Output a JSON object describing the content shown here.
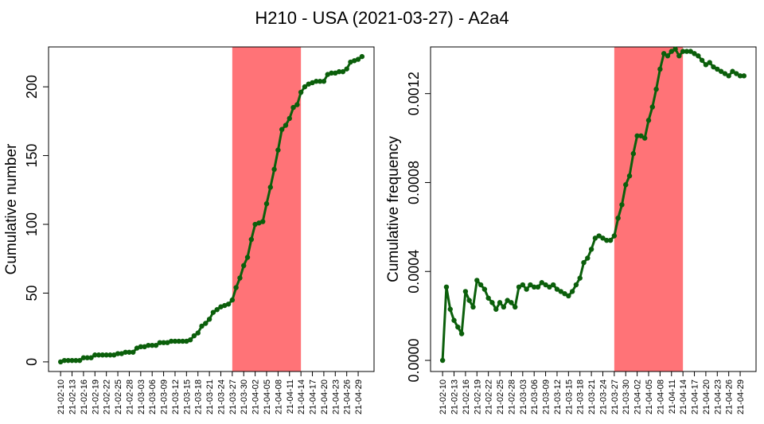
{
  "title": "H210 - USA (2021-03-27) - A2a4",
  "colors": {
    "line": "#0b5f0b",
    "highlight": "#ff7377",
    "frame": "#000000"
  },
  "chart_data": [
    {
      "type": "line",
      "ylabel": "Cumulative number",
      "xlabel": "",
      "ylim": [
        -7,
        229
      ],
      "yticks": [
        0,
        50,
        100,
        150,
        200
      ],
      "ytick_labels": [
        "0",
        "50",
        "100",
        "150",
        "200"
      ],
      "highlight_dates": [
        "21-03-27",
        "21-04-14"
      ],
      "xtick_labels": [
        "21-02-10",
        "21-02-13",
        "21-02-16",
        "21-02-19",
        "21-02-22",
        "21-02-25",
        "21-02-28",
        "21-03-03",
        "21-03-06",
        "21-03-09",
        "21-03-12",
        "21-03-15",
        "21-03-18",
        "21-03-21",
        "21-03-24",
        "21-03-27",
        "21-03-30",
        "21-04-02",
        "21-04-05",
        "21-04-08",
        "21-04-11",
        "21-04-14",
        "21-04-17",
        "21-04-20",
        "21-04-23",
        "21-04-26",
        "21-04-29"
      ],
      "series": [
        {
          "x": [
            "21-02-10",
            "21-02-11",
            "21-02-12",
            "21-02-13",
            "21-02-14",
            "21-02-15",
            "21-02-16",
            "21-02-17",
            "21-02-18",
            "21-02-19",
            "21-02-20",
            "21-02-21",
            "21-02-22",
            "21-02-23",
            "21-02-24",
            "21-02-25",
            "21-02-26",
            "21-02-27",
            "21-02-28",
            "21-03-01",
            "21-03-02",
            "21-03-03",
            "21-03-04",
            "21-03-05",
            "21-03-06",
            "21-03-07",
            "21-03-08",
            "21-03-09",
            "21-03-10",
            "21-03-11",
            "21-03-12",
            "21-03-13",
            "21-03-14",
            "21-03-15",
            "21-03-16",
            "21-03-17",
            "21-03-18",
            "21-03-19",
            "21-03-20",
            "21-03-21",
            "21-03-22",
            "21-03-23",
            "21-03-24",
            "21-03-25",
            "21-03-26",
            "21-03-27",
            "21-03-28",
            "21-03-29",
            "21-03-30",
            "21-03-31",
            "21-04-01",
            "21-04-02",
            "21-04-03",
            "21-04-04",
            "21-04-05",
            "21-04-06",
            "21-04-07",
            "21-04-08",
            "21-04-09",
            "21-04-10",
            "21-04-11",
            "21-04-12",
            "21-04-13",
            "21-04-14",
            "21-04-15",
            "21-04-16",
            "21-04-17",
            "21-04-18",
            "21-04-19",
            "21-04-20",
            "21-04-21",
            "21-04-22",
            "21-04-23",
            "21-04-24",
            "21-04-25",
            "21-04-26",
            "21-04-27",
            "21-04-28",
            "21-04-29",
            "21-04-30"
          ],
          "y": [
            0,
            1,
            1,
            1,
            1,
            1,
            3,
            3,
            3,
            5,
            5,
            5,
            5,
            5,
            5,
            6,
            6,
            7,
            7,
            7,
            10,
            11,
            11,
            12,
            12,
            12,
            14,
            14,
            14,
            15,
            15,
            15,
            15,
            15,
            16,
            19,
            21,
            26,
            28,
            31,
            36,
            38,
            40,
            41,
            42,
            45,
            54,
            61,
            70,
            76,
            89,
            100,
            101,
            102,
            115,
            127,
            140,
            154,
            169,
            172,
            177,
            185,
            187,
            196,
            200,
            202,
            203,
            204,
            204,
            204,
            209,
            210,
            210,
            211,
            211,
            213,
            218,
            219,
            220,
            222
          ]
        }
      ]
    },
    {
      "type": "line",
      "ylabel": "Cumulative frequency",
      "xlabel": "",
      "ylim": [
        -5e-05,
        0.00141
      ],
      "yticks": [
        0,
        0.0004,
        0.0008,
        0.0012
      ],
      "ytick_labels": [
        "0.0000",
        "0.0004",
        "0.0008",
        "0.0012"
      ],
      "highlight_dates": [
        "21-03-27",
        "21-04-14"
      ],
      "xtick_labels": [
        "21-02-10",
        "21-02-13",
        "21-02-16",
        "21-02-19",
        "21-02-22",
        "21-02-25",
        "21-02-28",
        "21-03-03",
        "21-03-06",
        "21-03-09",
        "21-03-12",
        "21-03-15",
        "21-03-18",
        "21-03-21",
        "21-03-24",
        "21-03-27",
        "21-03-30",
        "21-04-02",
        "21-04-05",
        "21-04-08",
        "21-04-11",
        "21-04-14",
        "21-04-17",
        "21-04-20",
        "21-04-23",
        "21-04-26",
        "21-04-29"
      ],
      "series": [
        {
          "x": [
            "21-02-10",
            "21-02-11",
            "21-02-12",
            "21-02-13",
            "21-02-14",
            "21-02-15",
            "21-02-16",
            "21-02-17",
            "21-02-18",
            "21-02-19",
            "21-02-20",
            "21-02-21",
            "21-02-22",
            "21-02-23",
            "21-02-24",
            "21-02-25",
            "21-02-26",
            "21-02-27",
            "21-02-28",
            "21-03-01",
            "21-03-02",
            "21-03-03",
            "21-03-04",
            "21-03-05",
            "21-03-06",
            "21-03-07",
            "21-03-08",
            "21-03-09",
            "21-03-10",
            "21-03-11",
            "21-03-12",
            "21-03-13",
            "21-03-14",
            "21-03-15",
            "21-03-16",
            "21-03-17",
            "21-03-18",
            "21-03-19",
            "21-03-20",
            "21-03-21",
            "21-03-22",
            "21-03-23",
            "21-03-24",
            "21-03-25",
            "21-03-26",
            "21-03-27",
            "21-03-28",
            "21-03-29",
            "21-03-30",
            "21-03-31",
            "21-04-01",
            "21-04-02",
            "21-04-03",
            "21-04-04",
            "21-04-05",
            "21-04-06",
            "21-04-07",
            "21-04-08",
            "21-04-09",
            "21-04-10",
            "21-04-11",
            "21-04-12",
            "21-04-13",
            "21-04-14",
            "21-04-15",
            "21-04-16",
            "21-04-17",
            "21-04-18",
            "21-04-19",
            "21-04-20",
            "21-04-21",
            "21-04-22",
            "21-04-23",
            "21-04-24",
            "21-04-25",
            "21-04-26",
            "21-04-27",
            "21-04-28",
            "21-04-29",
            "21-04-30"
          ],
          "y": [
            0.0,
            0.00033,
            0.00023,
            0.00018,
            0.00015,
            0.00012,
            0.00031,
            0.00027,
            0.00024,
            0.00036,
            0.00034,
            0.00032,
            0.00028,
            0.00026,
            0.00023,
            0.00026,
            0.00024,
            0.00027,
            0.00026,
            0.00024,
            0.00033,
            0.00034,
            0.00032,
            0.00034,
            0.00033,
            0.00033,
            0.00035,
            0.00034,
            0.00033,
            0.00034,
            0.00032,
            0.00031,
            0.0003,
            0.00029,
            0.00031,
            0.00034,
            0.00037,
            0.00044,
            0.00046,
            0.0005,
            0.00055,
            0.00056,
            0.00055,
            0.00054,
            0.00054,
            0.00056,
            0.00064,
            0.0007,
            0.00079,
            0.00083,
            0.00093,
            0.00101,
            0.00101,
            0.001,
            0.00108,
            0.00114,
            0.00122,
            0.00131,
            0.00138,
            0.00137,
            0.00139,
            0.0014,
            0.00137,
            0.00139,
            0.00139,
            0.00139,
            0.00138,
            0.00137,
            0.00135,
            0.00133,
            0.00134,
            0.00132,
            0.00131,
            0.0013,
            0.00129,
            0.00128,
            0.0013,
            0.00129,
            0.00128,
            0.00128
          ]
        }
      ]
    }
  ]
}
